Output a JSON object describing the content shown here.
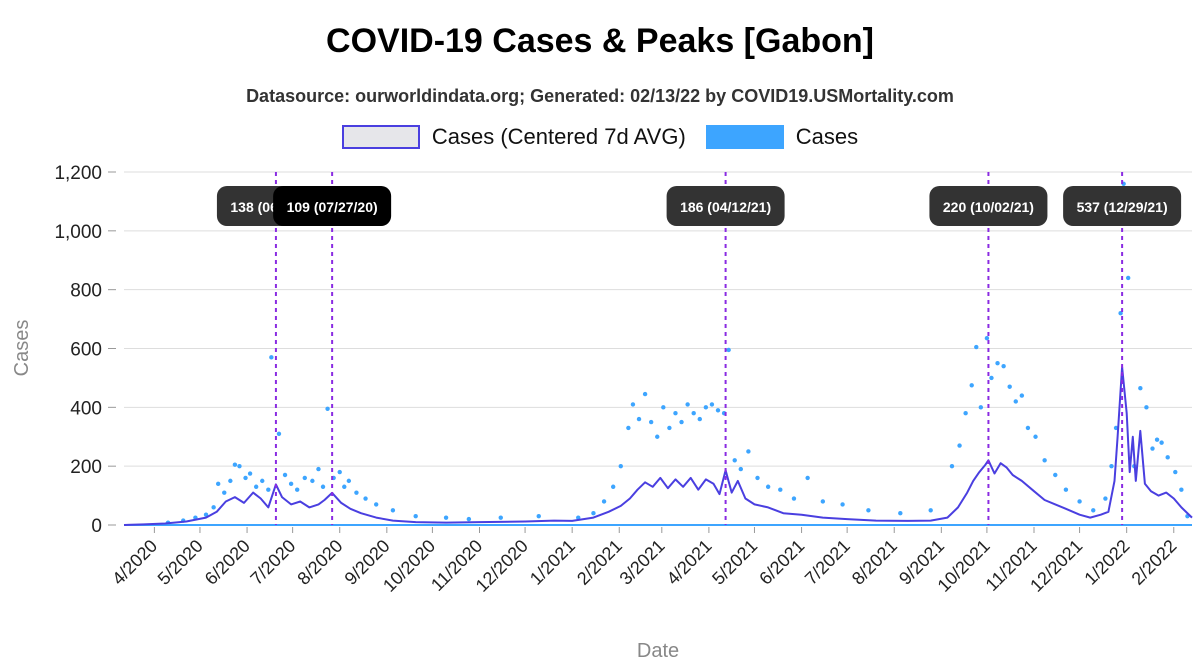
{
  "title": "COVID-19 Cases & Peaks [Gabon]",
  "subtitle": "Datasource: ourworldindata.org; Generated: 02/13/22 by COVID19.USMortality.com",
  "legend": [
    {
      "label": "Cases (Centered 7d AVG)",
      "fill": "#e6e6ea",
      "stroke": "#4a3fe0"
    },
    {
      "label": "Cases",
      "fill": "#3da5ff",
      "stroke": "#3da5ff"
    }
  ],
  "colors": {
    "avg_line": "#4a3fe0",
    "points": "#3da5ff",
    "peak_line": "#8a2be2",
    "grid": "#dddddd",
    "label_bg": "#333333"
  },
  "chart_data": {
    "type": "line",
    "xlabel": "Date",
    "ylabel": "Cases",
    "x_range": [
      "2020-03-12",
      "2022-02-13"
    ],
    "ylim": [
      0,
      1200
    ],
    "y_ticks": [
      0,
      200,
      400,
      600,
      800,
      1000,
      1200
    ],
    "y_tick_labels": [
      "0",
      "200",
      "400",
      "600",
      "800",
      "1,000",
      "1,200"
    ],
    "x_ticks": [
      {
        "date": "2020-04-01",
        "label": "4/2020"
      },
      {
        "date": "2020-05-01",
        "label": "5/2020"
      },
      {
        "date": "2020-06-01",
        "label": "6/2020"
      },
      {
        "date": "2020-07-01",
        "label": "7/2020"
      },
      {
        "date": "2020-08-01",
        "label": "8/2020"
      },
      {
        "date": "2020-09-01",
        "label": "9/2020"
      },
      {
        "date": "2020-10-01",
        "label": "10/2020"
      },
      {
        "date": "2020-11-01",
        "label": "11/2020"
      },
      {
        "date": "2020-12-01",
        "label": "12/2020"
      },
      {
        "date": "2021-01-01",
        "label": "1/2021"
      },
      {
        "date": "2021-02-01",
        "label": "2/2021"
      },
      {
        "date": "2021-03-01",
        "label": "3/2021"
      },
      {
        "date": "2021-04-01",
        "label": "4/2021"
      },
      {
        "date": "2021-05-01",
        "label": "5/2021"
      },
      {
        "date": "2021-06-01",
        "label": "6/2021"
      },
      {
        "date": "2021-07-01",
        "label": "7/2021"
      },
      {
        "date": "2021-08-01",
        "label": "8/2021"
      },
      {
        "date": "2021-09-01",
        "label": "9/2021"
      },
      {
        "date": "2021-10-01",
        "label": "10/2021"
      },
      {
        "date": "2021-11-01",
        "label": "11/2021"
      },
      {
        "date": "2021-12-01",
        "label": "12/2021"
      },
      {
        "date": "2022-01-01",
        "label": "1/2022"
      },
      {
        "date": "2022-02-01",
        "label": "2/2022"
      }
    ],
    "peaks": [
      {
        "date": "2020-06-20",
        "label": "138 (06/20/20)"
      },
      {
        "date": "2020-07-27",
        "label": "109 (07/27/20)"
      },
      {
        "date": "2021-04-12",
        "label": "186 (04/12/21)"
      },
      {
        "date": "2021-10-02",
        "label": "220 (10/02/21)"
      },
      {
        "date": "2021-12-29",
        "label": "537 (12/29/21)"
      }
    ],
    "series": [
      {
        "name": "Cases (Centered 7d AVG)",
        "points": [
          [
            "2020-03-12",
            0
          ],
          [
            "2020-03-25",
            2
          ],
          [
            "2020-04-08",
            5
          ],
          [
            "2020-04-22",
            12
          ],
          [
            "2020-05-05",
            25
          ],
          [
            "2020-05-12",
            45
          ],
          [
            "2020-05-18",
            80
          ],
          [
            "2020-05-24",
            95
          ],
          [
            "2020-05-30",
            75
          ],
          [
            "2020-06-05",
            110
          ],
          [
            "2020-06-10",
            90
          ],
          [
            "2020-06-15",
            60
          ],
          [
            "2020-06-20",
            138
          ],
          [
            "2020-06-24",
            95
          ],
          [
            "2020-06-30",
            70
          ],
          [
            "2020-07-06",
            80
          ],
          [
            "2020-07-12",
            60
          ],
          [
            "2020-07-18",
            70
          ],
          [
            "2020-07-22",
            85
          ],
          [
            "2020-07-27",
            109
          ],
          [
            "2020-08-02",
            75
          ],
          [
            "2020-08-08",
            55
          ],
          [
            "2020-08-15",
            40
          ],
          [
            "2020-08-25",
            25
          ],
          [
            "2020-09-05",
            15
          ],
          [
            "2020-09-20",
            10
          ],
          [
            "2020-10-10",
            8
          ],
          [
            "2020-11-01",
            10
          ],
          [
            "2020-12-01",
            12
          ],
          [
            "2020-12-20",
            15
          ],
          [
            "2021-01-01",
            14
          ],
          [
            "2021-01-15",
            25
          ],
          [
            "2021-01-25",
            45
          ],
          [
            "2021-02-02",
            65
          ],
          [
            "2021-02-08",
            90
          ],
          [
            "2021-02-13",
            120
          ],
          [
            "2021-02-18",
            145
          ],
          [
            "2021-02-23",
            130
          ],
          [
            "2021-02-28",
            160
          ],
          [
            "2021-03-05",
            125
          ],
          [
            "2021-03-10",
            155
          ],
          [
            "2021-03-15",
            130
          ],
          [
            "2021-03-20",
            160
          ],
          [
            "2021-03-25",
            120
          ],
          [
            "2021-03-30",
            155
          ],
          [
            "2021-04-04",
            140
          ],
          [
            "2021-04-08",
            105
          ],
          [
            "2021-04-12",
            186
          ],
          [
            "2021-04-16",
            110
          ],
          [
            "2021-04-20",
            150
          ],
          [
            "2021-04-25",
            90
          ],
          [
            "2021-05-01",
            70
          ],
          [
            "2021-05-10",
            60
          ],
          [
            "2021-05-20",
            40
          ],
          [
            "2021-06-01",
            35
          ],
          [
            "2021-06-15",
            25
          ],
          [
            "2021-07-01",
            20
          ],
          [
            "2021-07-20",
            15
          ],
          [
            "2021-08-10",
            14
          ],
          [
            "2021-08-25",
            15
          ],
          [
            "2021-09-05",
            25
          ],
          [
            "2021-09-12",
            60
          ],
          [
            "2021-09-18",
            110
          ],
          [
            "2021-09-22",
            150
          ],
          [
            "2021-09-26",
            180
          ],
          [
            "2021-09-30",
            205
          ],
          [
            "2021-10-02",
            220
          ],
          [
            "2021-10-06",
            175
          ],
          [
            "2021-10-10",
            210
          ],
          [
            "2021-10-14",
            195
          ],
          [
            "2021-10-18",
            170
          ],
          [
            "2021-10-24",
            150
          ],
          [
            "2021-11-01",
            115
          ],
          [
            "2021-11-08",
            85
          ],
          [
            "2021-11-15",
            70
          ],
          [
            "2021-11-22",
            55
          ],
          [
            "2021-12-01",
            35
          ],
          [
            "2021-12-08",
            25
          ],
          [
            "2021-12-15",
            35
          ],
          [
            "2021-12-20",
            45
          ],
          [
            "2021-12-24",
            150
          ],
          [
            "2021-12-26",
            300
          ],
          [
            "2021-12-29",
            537
          ],
          [
            "2022-01-01",
            380
          ],
          [
            "2022-01-03",
            180
          ],
          [
            "2022-01-05",
            300
          ],
          [
            "2022-01-07",
            150
          ],
          [
            "2022-01-10",
            320
          ],
          [
            "2022-01-13",
            140
          ],
          [
            "2022-01-17",
            115
          ],
          [
            "2022-01-22",
            100
          ],
          [
            "2022-01-27",
            110
          ],
          [
            "2022-02-01",
            90
          ],
          [
            "2022-02-06",
            60
          ],
          [
            "2022-02-13",
            25
          ]
        ]
      },
      {
        "name": "Cases",
        "points": [
          [
            "2020-04-10",
            8
          ],
          [
            "2020-04-20",
            15
          ],
          [
            "2020-04-28",
            25
          ],
          [
            "2020-05-05",
            35
          ],
          [
            "2020-05-10",
            60
          ],
          [
            "2020-05-13",
            140
          ],
          [
            "2020-05-17",
            110
          ],
          [
            "2020-05-21",
            150
          ],
          [
            "2020-05-24",
            205
          ],
          [
            "2020-05-27",
            200
          ],
          [
            "2020-05-31",
            160
          ],
          [
            "2020-06-03",
            175
          ],
          [
            "2020-06-07",
            130
          ],
          [
            "2020-06-11",
            150
          ],
          [
            "2020-06-15",
            120
          ],
          [
            "2020-06-17",
            570
          ],
          [
            "2020-06-22",
            310
          ],
          [
            "2020-06-26",
            170
          ],
          [
            "2020-06-30",
            140
          ],
          [
            "2020-07-04",
            120
          ],
          [
            "2020-07-09",
            160
          ],
          [
            "2020-07-14",
            150
          ],
          [
            "2020-07-18",
            190
          ],
          [
            "2020-07-21",
            130
          ],
          [
            "2020-07-24",
            395
          ],
          [
            "2020-07-28",
            160
          ],
          [
            "2020-08-01",
            180
          ],
          [
            "2020-08-04",
            130
          ],
          [
            "2020-08-07",
            150
          ],
          [
            "2020-08-12",
            110
          ],
          [
            "2020-08-18",
            90
          ],
          [
            "2020-08-25",
            70
          ],
          [
            "2020-09-05",
            50
          ],
          [
            "2020-09-20",
            30
          ],
          [
            "2020-10-10",
            25
          ],
          [
            "2020-10-25",
            20
          ],
          [
            "2020-11-15",
            25
          ],
          [
            "2020-12-10",
            30
          ],
          [
            "2021-01-05",
            25
          ],
          [
            "2021-01-15",
            40
          ],
          [
            "2021-01-22",
            80
          ],
          [
            "2021-01-28",
            130
          ],
          [
            "2021-02-02",
            200
          ],
          [
            "2021-02-07",
            330
          ],
          [
            "2021-02-10",
            410
          ],
          [
            "2021-02-14",
            360
          ],
          [
            "2021-02-18",
            445
          ],
          [
            "2021-02-22",
            350
          ],
          [
            "2021-02-26",
            300
          ],
          [
            "2021-03-02",
            400
          ],
          [
            "2021-03-06",
            330
          ],
          [
            "2021-03-10",
            380
          ],
          [
            "2021-03-14",
            350
          ],
          [
            "2021-03-18",
            410
          ],
          [
            "2021-03-22",
            380
          ],
          [
            "2021-03-26",
            360
          ],
          [
            "2021-03-30",
            400
          ],
          [
            "2021-04-03",
            410
          ],
          [
            "2021-04-07",
            390
          ],
          [
            "2021-04-11",
            380
          ],
          [
            "2021-04-14",
            595
          ],
          [
            "2021-04-18",
            220
          ],
          [
            "2021-04-22",
            190
          ],
          [
            "2021-04-27",
            250
          ],
          [
            "2021-05-03",
            160
          ],
          [
            "2021-05-10",
            130
          ],
          [
            "2021-05-18",
            120
          ],
          [
            "2021-05-27",
            90
          ],
          [
            "2021-06-05",
            160
          ],
          [
            "2021-06-15",
            80
          ],
          [
            "2021-06-28",
            70
          ],
          [
            "2021-07-15",
            50
          ],
          [
            "2021-08-05",
            40
          ],
          [
            "2021-08-25",
            50
          ],
          [
            "2021-09-08",
            200
          ],
          [
            "2021-09-13",
            270
          ],
          [
            "2021-09-17",
            380
          ],
          [
            "2021-09-21",
            475
          ],
          [
            "2021-09-24",
            605
          ],
          [
            "2021-09-27",
            400
          ],
          [
            "2021-10-01",
            635
          ],
          [
            "2021-10-04",
            500
          ],
          [
            "2021-10-08",
            550
          ],
          [
            "2021-10-12",
            540
          ],
          [
            "2021-10-16",
            470
          ],
          [
            "2021-10-20",
            420
          ],
          [
            "2021-10-24",
            440
          ],
          [
            "2021-10-28",
            330
          ],
          [
            "2021-11-02",
            300
          ],
          [
            "2021-11-08",
            220
          ],
          [
            "2021-11-15",
            170
          ],
          [
            "2021-11-22",
            120
          ],
          [
            "2021-12-01",
            80
          ],
          [
            "2021-12-10",
            50
          ],
          [
            "2021-12-18",
            90
          ],
          [
            "2021-12-22",
            200
          ],
          [
            "2021-12-25",
            330
          ],
          [
            "2021-12-28",
            720
          ],
          [
            "2021-12-30",
            1160
          ],
          [
            "2022-01-02",
            840
          ],
          [
            "2022-01-06",
            200
          ],
          [
            "2022-01-10",
            465
          ],
          [
            "2022-01-14",
            400
          ],
          [
            "2022-01-18",
            260
          ],
          [
            "2022-01-21",
            290
          ],
          [
            "2022-01-24",
            280
          ],
          [
            "2022-01-28",
            230
          ],
          [
            "2022-02-02",
            180
          ],
          [
            "2022-02-06",
            120
          ],
          [
            "2022-02-10",
            30
          ]
        ]
      }
    ]
  }
}
